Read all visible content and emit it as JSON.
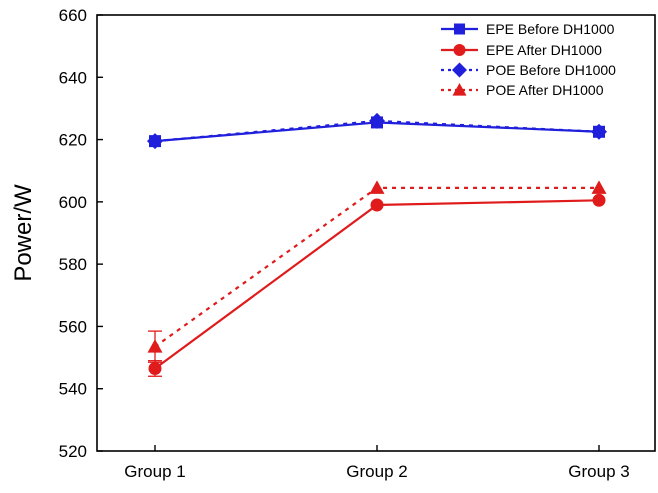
{
  "chart_data": {
    "type": "line",
    "categories": [
      "Group 1",
      "Group 2",
      "Group 3"
    ],
    "ylabel": "Power/W",
    "xlabel": "",
    "ylim": [
      520,
      660
    ],
    "yticks": [
      520,
      540,
      560,
      580,
      600,
      620,
      640,
      660
    ],
    "legend_position": "top-right",
    "series": [
      {
        "name": "EPE Before DH1000",
        "values": [
          619.5,
          625.5,
          622.5
        ],
        "color": "#1f1fdc",
        "marker": "square",
        "dash": "solid",
        "error": [
          0,
          0,
          0
        ]
      },
      {
        "name": "EPE After DH1000",
        "values": [
          546.5,
          599,
          600.5
        ],
        "color": "#e01b1b",
        "marker": "circle",
        "dash": "solid",
        "error": [
          2.5,
          0,
          0
        ]
      },
      {
        "name": "POE Before DH1000",
        "values": [
          619.5,
          626,
          622.5
        ],
        "color": "#1f1fdc",
        "marker": "diamond",
        "dash": "dotted",
        "error": [
          0,
          0,
          0
        ]
      },
      {
        "name": "POE After DH1000",
        "values": [
          553.5,
          604.5,
          604.5
        ],
        "color": "#e01b1b",
        "marker": "triangle",
        "dash": "dotted",
        "error": [
          5,
          0,
          0
        ]
      }
    ]
  }
}
